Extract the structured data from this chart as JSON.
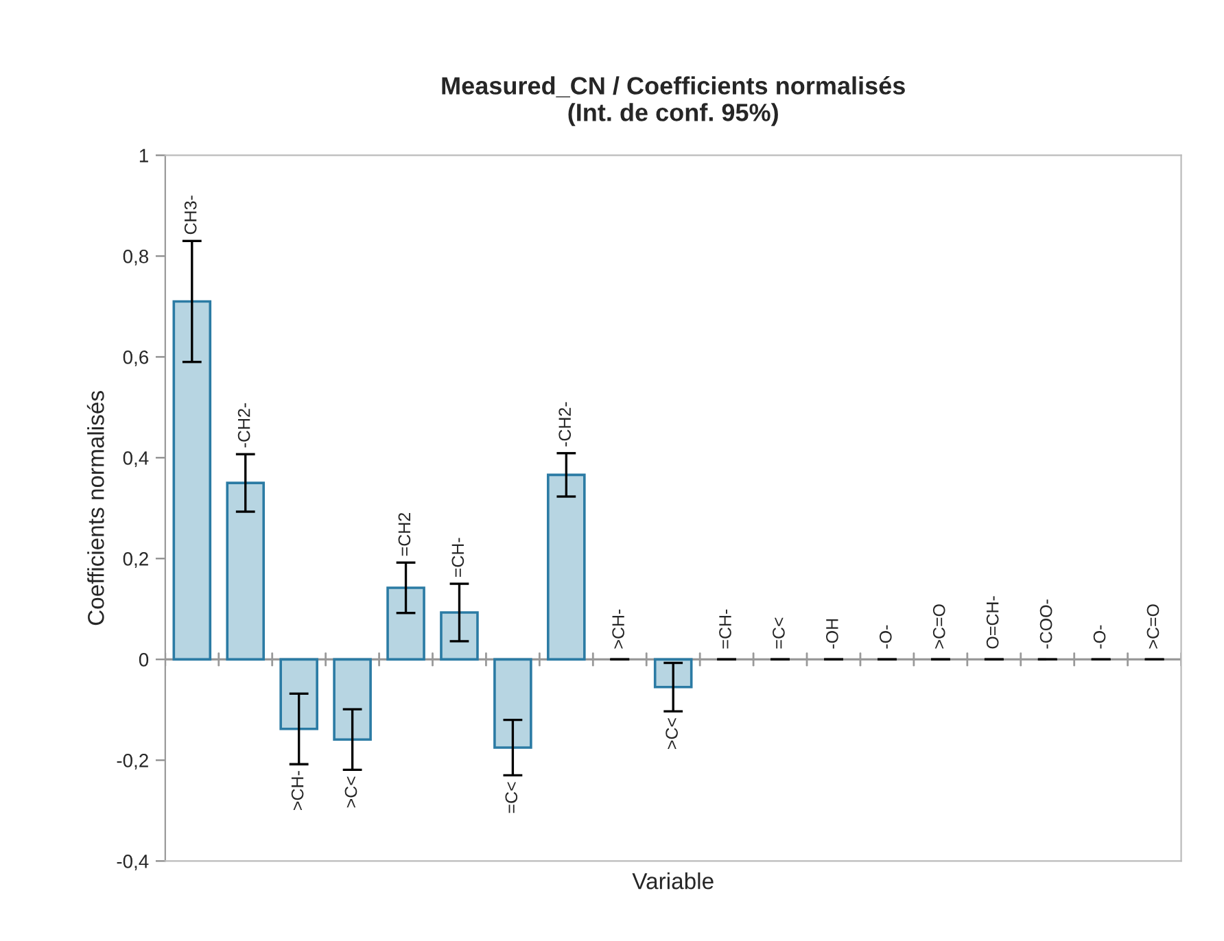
{
  "chart_data": {
    "type": "bar",
    "title": "Measured_CN / Coefficients normalisés\n(Int. de conf. 95%)",
    "xlabel": "Variable",
    "ylabel": "Coefficients normalisés",
    "categories": [
      "CH3-",
      "-CH2-",
      ">CH-",
      ">C<",
      "=CH2",
      "=CH-",
      "=C<",
      "-CH2-",
      ">CH-",
      ">C<",
      "=CH-",
      "=C<",
      "-OH",
      "-O-",
      ">C=O",
      "O=CH-",
      "-COO-",
      "-O-",
      ">C=O"
    ],
    "series": [
      {
        "color": "#b7d5e2",
        "values": [
          0.71,
          0.35,
          -0.138,
          -0.159,
          0.142,
          0.093,
          -0.175,
          0.366,
          0,
          -0.055,
          0,
          0,
          0,
          0,
          0,
          0,
          0,
          0,
          0
        ],
        "errors": [
          0.12,
          0.057,
          0.07,
          0.06,
          0.05,
          0.057,
          0.055,
          0.043,
          0,
          0.048,
          0,
          0,
          0,
          0,
          0,
          0,
          0,
          0,
          0
        ]
      }
    ],
    "ylim": [
      -0.4,
      1
    ],
    "yticks": [
      {
        "value": -0.4,
        "label": "-0,4"
      },
      {
        "value": -0.2,
        "label": "-0,2"
      },
      0,
      {
        "value": 0.2,
        "label": "0,2"
      },
      {
        "value": 0.4,
        "label": "0,4"
      },
      {
        "value": 0.6,
        "label": "0,6"
      },
      {
        "value": 0.8,
        "label": "0,8"
      },
      1
    ],
    "grid": false,
    "legend": false
  }
}
